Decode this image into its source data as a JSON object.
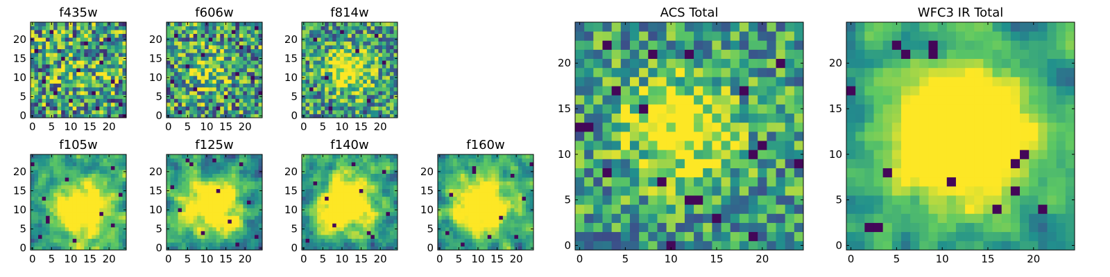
{
  "colormap": [
    "#440154",
    "#3b528b",
    "#21908d",
    "#5dc863",
    "#fde725"
  ],
  "chart_data": [
    {
      "type": "heatmap",
      "title": "f435w",
      "grid_size": 25,
      "xlim": [
        0,
        25
      ],
      "ylim": [
        0,
        25
      ],
      "xticks": [
        0,
        5,
        10,
        15,
        20
      ],
      "yticks": [
        0,
        5,
        10,
        15,
        20
      ],
      "noise": 0.9,
      "peak": {
        "x": 12,
        "y": 10,
        "sigma": 5,
        "amp": 0.15
      },
      "dark_cells": [
        [
          3,
          9
        ],
        [
          16,
          6
        ],
        [
          12,
          12
        ],
        [
          20,
          20
        ],
        [
          8,
          15
        ],
        [
          23,
          3
        ],
        [
          5,
          22
        ],
        [
          18,
          14
        ],
        [
          10,
          4
        ],
        [
          1,
          17
        ],
        [
          14,
          19
        ],
        [
          21,
          9
        ],
        [
          6,
          6
        ],
        [
          24,
          0
        ],
        [
          17,
          2
        ]
      ],
      "seed": 11
    },
    {
      "type": "heatmap",
      "title": "f606w",
      "grid_size": 25,
      "xlim": [
        0,
        25
      ],
      "ylim": [
        0,
        25
      ],
      "xticks": [
        0,
        5,
        10,
        15,
        20
      ],
      "yticks": [
        0,
        5,
        10,
        15,
        20
      ],
      "noise": 0.85,
      "peak": {
        "x": 10,
        "y": 12,
        "sigma": 4,
        "amp": 0.3
      },
      "dark_cells": [
        [
          2,
          21
        ],
        [
          3,
          1
        ],
        [
          15,
          5
        ],
        [
          19,
          18
        ],
        [
          22,
          10
        ],
        [
          7,
          7
        ],
        [
          11,
          20
        ],
        [
          18,
          11
        ],
        [
          5,
          13
        ],
        [
          13,
          2
        ],
        [
          23,
          23
        ],
        [
          9,
          16
        ],
        [
          17,
          22
        ],
        [
          24,
          6
        ],
        [
          1,
          9
        ]
      ],
      "seed": 23
    },
    {
      "type": "heatmap",
      "title": "f814w",
      "grid_size": 25,
      "xlim": [
        0,
        25
      ],
      "ylim": [
        0,
        25
      ],
      "xticks": [
        0,
        5,
        10,
        15,
        20
      ],
      "yticks": [
        0,
        5,
        10,
        15,
        20
      ],
      "noise": 0.75,
      "peak": {
        "x": 12,
        "y": 12,
        "sigma": 4,
        "amp": 0.55
      },
      "dark_cells": [
        [
          3,
          20
        ],
        [
          17,
          4
        ],
        [
          7,
          2
        ],
        [
          21,
          14
        ],
        [
          10,
          22
        ],
        [
          2,
          7
        ],
        [
          19,
          21
        ],
        [
          14,
          17
        ],
        [
          6,
          10
        ]
      ],
      "seed": 37
    },
    {
      "type": "heatmap",
      "title": "f105w",
      "grid_size": 25,
      "xlim": [
        0,
        25
      ],
      "ylim": [
        0,
        25
      ],
      "xticks": [
        0,
        5,
        10,
        15,
        20
      ],
      "yticks": [
        0,
        5,
        10,
        15,
        20
      ],
      "noise": 0.55,
      "smooth": 1,
      "peak": {
        "x": 13,
        "y": 10,
        "sigma": 5,
        "amp": 0.45
      },
      "dark_cells": [
        [
          4,
          8
        ],
        [
          4,
          7
        ],
        [
          2,
          3
        ],
        [
          11,
          2
        ],
        [
          21,
          6
        ],
        [
          18,
          9
        ],
        [
          3,
          13
        ],
        [
          9,
          18
        ],
        [
          21,
          21
        ],
        [
          0,
          22
        ],
        [
          23,
          14
        ]
      ],
      "seed": 41
    },
    {
      "type": "heatmap",
      "title": "f125w",
      "grid_size": 25,
      "xlim": [
        0,
        25
      ],
      "ylim": [
        0,
        25
      ],
      "xticks": [
        0,
        5,
        10,
        15,
        20
      ],
      "yticks": [
        0,
        5,
        10,
        15,
        20
      ],
      "noise": 0.6,
      "smooth": 1,
      "peak": {
        "x": 12,
        "y": 11,
        "sigma": 5,
        "amp": 0.4
      },
      "dark_cells": [
        [
          5,
          23
        ],
        [
          6,
          22
        ],
        [
          12,
          23
        ],
        [
          19,
          22
        ],
        [
          3,
          10
        ],
        [
          16,
          7
        ],
        [
          21,
          12
        ],
        [
          9,
          4
        ],
        [
          23,
          3
        ],
        [
          1,
          16
        ],
        [
          13,
          15
        ],
        [
          18,
          1
        ]
      ],
      "seed": 53
    },
    {
      "type": "heatmap",
      "title": "f140w",
      "grid_size": 25,
      "xlim": [
        0,
        25
      ],
      "ylim": [
        0,
        25
      ],
      "xticks": [
        0,
        5,
        10,
        15,
        20
      ],
      "yticks": [
        0,
        5,
        10,
        15,
        20
      ],
      "noise": 0.6,
      "smooth": 1,
      "peak": {
        "x": 11,
        "y": 12,
        "sigma": 5,
        "amp": 0.45
      },
      "dark_cells": [
        [
          17,
          4
        ],
        [
          18,
          3
        ],
        [
          3,
          17
        ],
        [
          21,
          20
        ],
        [
          8,
          6
        ],
        [
          13,
          22
        ],
        [
          1,
          2
        ],
        [
          22,
          9
        ],
        [
          6,
          13
        ],
        [
          15,
          15
        ]
      ],
      "seed": 67
    },
    {
      "type": "heatmap",
      "title": "f160w",
      "grid_size": 25,
      "xlim": [
        0,
        25
      ],
      "ylim": [
        0,
        25
      ],
      "xticks": [
        0,
        5,
        10,
        15,
        20
      ],
      "yticks": [
        0,
        5,
        10,
        15,
        20
      ],
      "noise": 0.55,
      "smooth": 1,
      "peak": {
        "x": 11,
        "y": 11,
        "sigma": 5,
        "amp": 0.5
      },
      "dark_cells": [
        [
          9,
          21
        ],
        [
          9,
          20
        ],
        [
          3,
          14
        ],
        [
          19,
          19
        ],
        [
          2,
          4
        ],
        [
          16,
          8
        ],
        [
          22,
          13
        ],
        [
          6,
          1
        ],
        [
          13,
          3
        ],
        [
          24,
          22
        ],
        [
          20,
          3
        ]
      ],
      "seed": 79
    },
    {
      "type": "heatmap",
      "title": "ACS Total",
      "grid_size": 25,
      "xlim": [
        0,
        25
      ],
      "ylim": [
        0,
        25
      ],
      "xticks": [
        0,
        5,
        10,
        15,
        20
      ],
      "yticks": [
        0,
        5,
        10,
        15,
        20
      ],
      "noise": 0.65,
      "peak": {
        "x": 11,
        "y": 13,
        "sigma": 4,
        "amp": 0.55
      },
      "dark_cells": [
        [
          0,
          13
        ],
        [
          1,
          13
        ],
        [
          3,
          8
        ],
        [
          7,
          15
        ],
        [
          12,
          21
        ],
        [
          8,
          21
        ],
        [
          3,
          22
        ],
        [
          4,
          17
        ],
        [
          19,
          10
        ],
        [
          20,
          11
        ],
        [
          9,
          7
        ],
        [
          12,
          5
        ],
        [
          13,
          5
        ],
        [
          10,
          0
        ],
        [
          19,
          1
        ],
        [
          24,
          9
        ],
        [
          18,
          17
        ],
        [
          22,
          20
        ],
        [
          15,
          3
        ]
      ],
      "seed": 97
    },
    {
      "type": "heatmap",
      "title": "WFC3 IR Total",
      "grid_size": 25,
      "xlim": [
        0,
        25
      ],
      "ylim": [
        0,
        25
      ],
      "xticks": [
        0,
        5,
        10,
        15,
        20
      ],
      "yticks": [
        0,
        5,
        10,
        15,
        20
      ],
      "noise": 0.45,
      "smooth": 1,
      "peak": {
        "x": 12,
        "y": 12,
        "sigma": 5,
        "amp": 0.6
      },
      "dark_cells": [
        [
          2,
          2
        ],
        [
          3,
          2
        ],
        [
          9,
          21
        ],
        [
          9,
          22
        ],
        [
          6,
          21
        ],
        [
          5,
          22
        ],
        [
          19,
          10
        ],
        [
          18,
          9
        ],
        [
          4,
          8
        ],
        [
          11,
          7
        ],
        [
          18,
          6
        ],
        [
          21,
          4
        ],
        [
          0,
          17
        ],
        [
          16,
          4
        ]
      ],
      "seed": 113
    }
  ]
}
